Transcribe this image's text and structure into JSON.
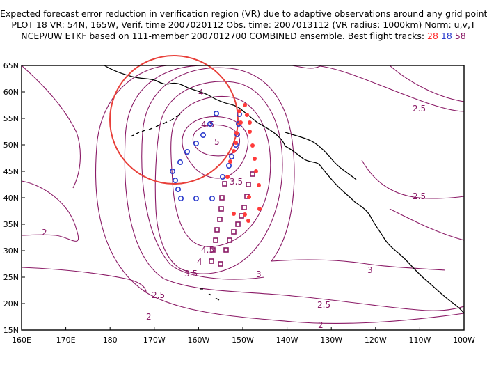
{
  "title": {
    "line1": "Expected forecast error reduction in verification region (VR) due to adaptive observations around any grid point.",
    "line2": "PLOT 18 VR: 54N, 165W, Verif. time 2007020112 Obs. time: 2007013112 (VR radius: 1000km) Norm: u,v,T",
    "line3_prefix": "NCEP/UW ETKF based on 111-member 2007012700 COMBINED ensemble.  Best flight tracks: ",
    "track_a": "28",
    "track_b": "18",
    "track_c": "58"
  },
  "axes": {
    "x_ticks": [
      "160E",
      "170E",
      "180",
      "170W",
      "160W",
      "150W",
      "140W",
      "130W",
      "120W",
      "110W",
      "100W"
    ],
    "y_ticks": [
      "65N",
      "60N",
      "55N",
      "50N",
      "45N",
      "40N",
      "35N",
      "30N",
      "25N",
      "20N",
      "15N"
    ]
  },
  "contour_labels": [
    "4",
    "4.5",
    "5",
    "3.5",
    "2.5",
    "2.5",
    "2",
    "3",
    "2.5",
    "2",
    "3.5",
    "4",
    "4.5",
    "2.5",
    "2"
  ],
  "colors": {
    "contour": "#8a1a66",
    "vr_circle": "#e8403a",
    "track_28": "#ff3b3b",
    "track_18": "#2a3acc",
    "track_58": "#8a1a66",
    "land": "#000000"
  }
}
